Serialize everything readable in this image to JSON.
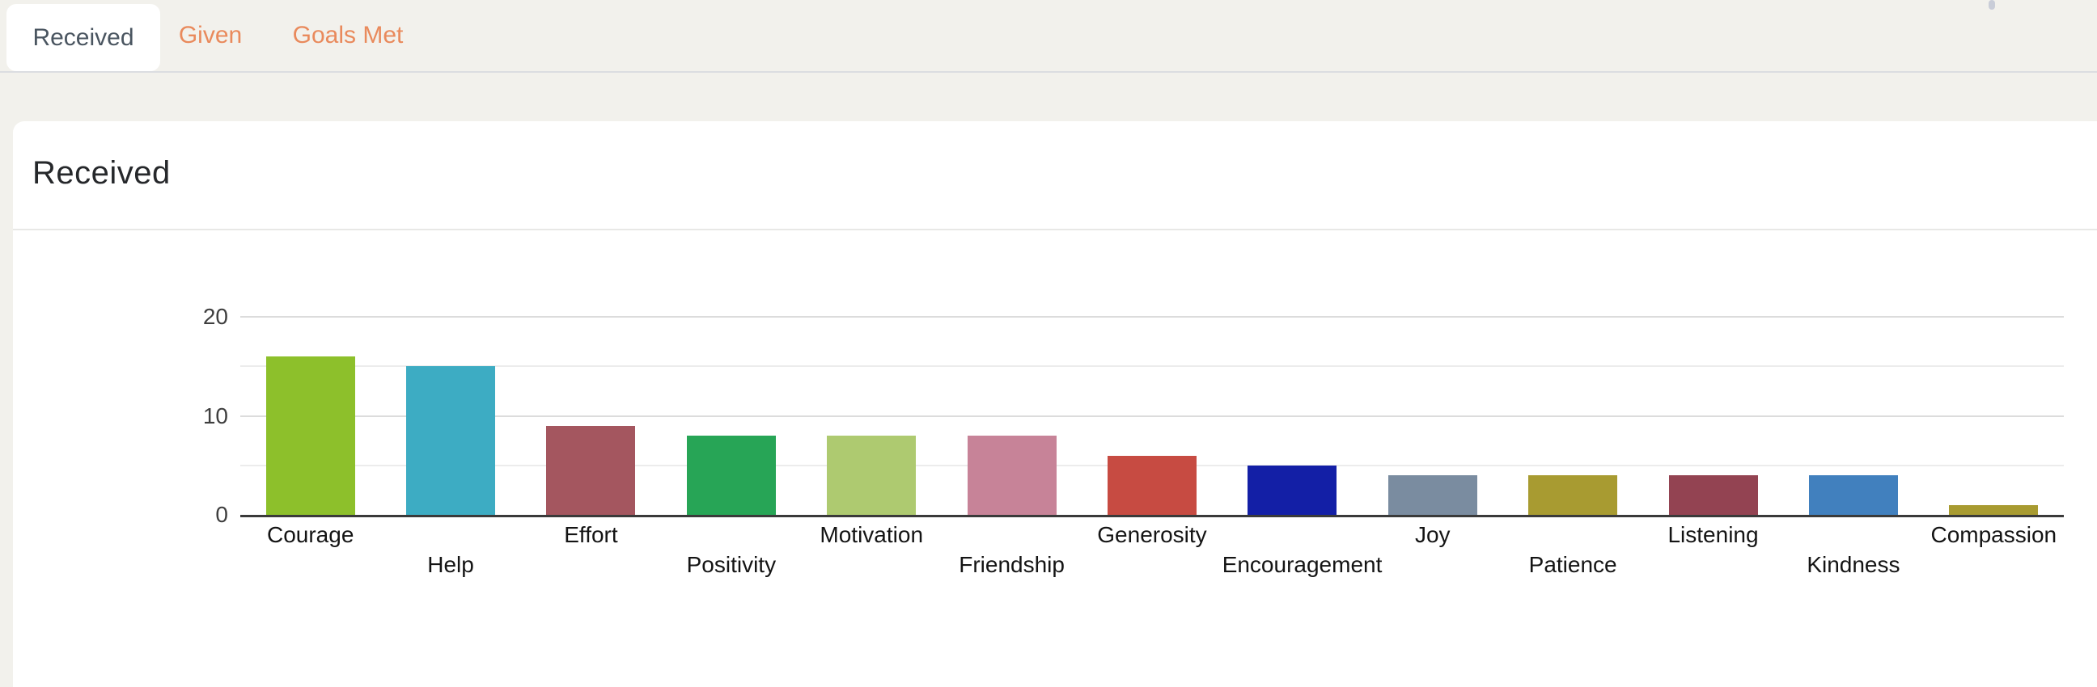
{
  "tabs": [
    {
      "label": "Received",
      "active": true
    },
    {
      "label": "Given",
      "active": false
    },
    {
      "label": "Goals Met",
      "active": false
    }
  ],
  "card": {
    "title": "Received"
  },
  "colors": {
    "background": "#f2f1ec",
    "tab_active_text": "#4a5560",
    "tab_inactive_text": "#e98a5c",
    "card_background": "#ffffff",
    "axis_line": "#3a3a3a",
    "gridline_major": "#dcdcdc",
    "gridline_minor": "#ececec"
  },
  "chart_data": {
    "type": "bar",
    "title": "Received",
    "categories": [
      "Courage",
      "Help",
      "Effort",
      "Positivity",
      "Motivation",
      "Friendship",
      "Generosity",
      "Encouragement",
      "Joy",
      "Patience",
      "Listening",
      "Kindness",
      "Compassion"
    ],
    "values": [
      16,
      15,
      9,
      8,
      8,
      8,
      6,
      5,
      4,
      4,
      4,
      4,
      1
    ],
    "bar_colors": [
      "#8dc02b",
      "#3dacc3",
      "#a4565f",
      "#27a556",
      "#aeca70",
      "#c78398",
      "#c74b42",
      "#131fa6",
      "#7a8ca0",
      "#a89b31",
      "#934352",
      "#4180be",
      "#a89b31"
    ],
    "xlabel": "",
    "ylabel": "",
    "ylim": [
      0,
      20
    ],
    "yticks": [
      0,
      5,
      10,
      15,
      20
    ],
    "ytick_labels": [
      0,
      10,
      20
    ],
    "grid": true,
    "legend": false,
    "xlabel_rows": "alternating"
  }
}
